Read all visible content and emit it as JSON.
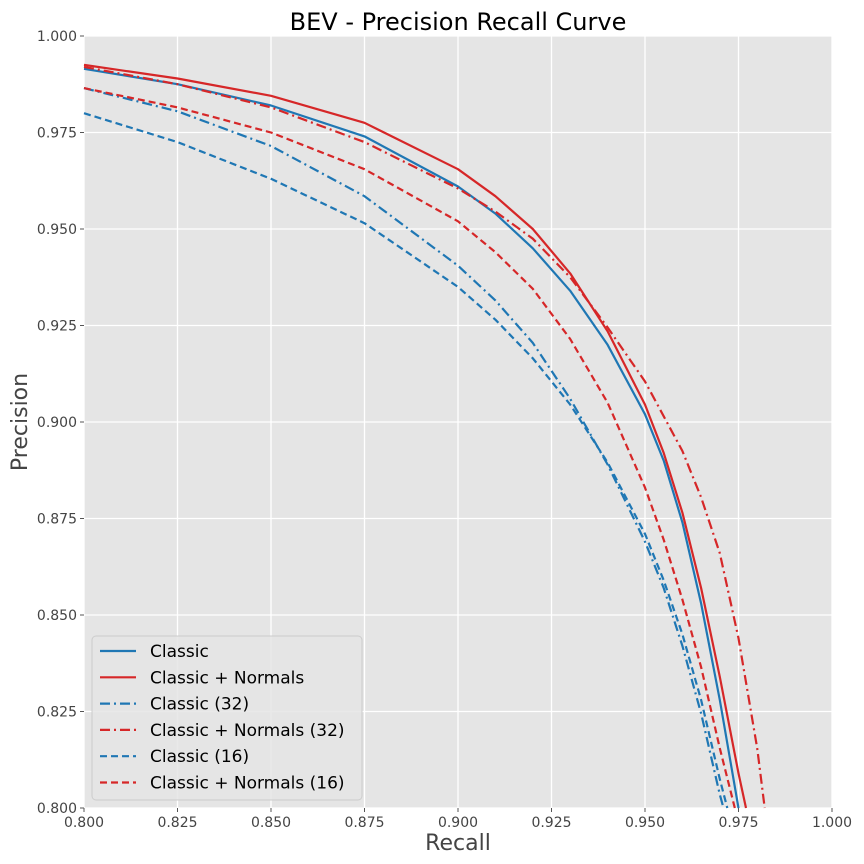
{
  "chart_data": {
    "type": "line",
    "title": "BEV - Precision Recall Curve",
    "xlabel": "Recall",
    "ylabel": "Precision",
    "xlim": [
      0.8,
      1.0
    ],
    "ylim": [
      0.8,
      1.0
    ],
    "x_ticks": [
      "0.800",
      "0.825",
      "0.850",
      "0.875",
      "0.900",
      "0.925",
      "0.950",
      "0.975",
      "1.000"
    ],
    "y_ticks": [
      "0.800",
      "0.825",
      "0.850",
      "0.875",
      "0.900",
      "0.925",
      "0.950",
      "0.975",
      "1.000"
    ],
    "grid": true,
    "legend_position": "lower-left",
    "series": [
      {
        "name": "Classic",
        "color": "#1f77b4",
        "linestyle": "solid",
        "points": [
          [
            0.8,
            0.9915
          ],
          [
            0.825,
            0.9875
          ],
          [
            0.85,
            0.982
          ],
          [
            0.875,
            0.974
          ],
          [
            0.9,
            0.961
          ],
          [
            0.91,
            0.954
          ],
          [
            0.92,
            0.945
          ],
          [
            0.93,
            0.934
          ],
          [
            0.94,
            0.92
          ],
          [
            0.95,
            0.902
          ],
          [
            0.955,
            0.89
          ],
          [
            0.96,
            0.874
          ],
          [
            0.965,
            0.853
          ],
          [
            0.97,
            0.828
          ],
          [
            0.975,
            0.8
          ]
        ]
      },
      {
        "name": "Classic + Normals",
        "color": "#d62728",
        "linestyle": "solid",
        "points": [
          [
            0.8,
            0.9925
          ],
          [
            0.825,
            0.989
          ],
          [
            0.85,
            0.9845
          ],
          [
            0.875,
            0.9775
          ],
          [
            0.9,
            0.9655
          ],
          [
            0.91,
            0.9585
          ],
          [
            0.92,
            0.95
          ],
          [
            0.93,
            0.9385
          ],
          [
            0.94,
            0.9235
          ],
          [
            0.95,
            0.9045
          ],
          [
            0.955,
            0.892
          ],
          [
            0.96,
            0.8765
          ],
          [
            0.965,
            0.857
          ],
          [
            0.97,
            0.834
          ],
          [
            0.975,
            0.809
          ],
          [
            0.977,
            0.8
          ]
        ]
      },
      {
        "name": "Classic (32)",
        "color": "#1f77b4",
        "linestyle": "dashdot",
        "points": [
          [
            0.8,
            0.9865
          ],
          [
            0.825,
            0.9805
          ],
          [
            0.85,
            0.9715
          ],
          [
            0.875,
            0.9585
          ],
          [
            0.9,
            0.9405
          ],
          [
            0.91,
            0.9315
          ],
          [
            0.92,
            0.9205
          ],
          [
            0.93,
            0.906
          ],
          [
            0.94,
            0.889
          ],
          [
            0.95,
            0.869
          ],
          [
            0.955,
            0.857
          ],
          [
            0.96,
            0.842
          ],
          [
            0.965,
            0.8245
          ],
          [
            0.97,
            0.8035
          ],
          [
            0.971,
            0.8
          ]
        ]
      },
      {
        "name": "Classic + Normals (32)",
        "color": "#d62728",
        "linestyle": "dashdot",
        "points": [
          [
            0.8,
            0.992
          ],
          [
            0.825,
            0.9875
          ],
          [
            0.85,
            0.9815
          ],
          [
            0.875,
            0.9725
          ],
          [
            0.9,
            0.9605
          ],
          [
            0.91,
            0.9545
          ],
          [
            0.92,
            0.9475
          ],
          [
            0.93,
            0.9375
          ],
          [
            0.94,
            0.9245
          ],
          [
            0.95,
            0.9105
          ],
          [
            0.96,
            0.8925
          ],
          [
            0.965,
            0.8805
          ],
          [
            0.97,
            0.866
          ],
          [
            0.975,
            0.844
          ],
          [
            0.98,
            0.8155
          ],
          [
            0.982,
            0.8
          ]
        ]
      },
      {
        "name": "Classic (16)",
        "color": "#1f77b4",
        "linestyle": "dashed",
        "points": [
          [
            0.8,
            0.98
          ],
          [
            0.825,
            0.9725
          ],
          [
            0.85,
            0.963
          ],
          [
            0.875,
            0.9515
          ],
          [
            0.9,
            0.935
          ],
          [
            0.91,
            0.9265
          ],
          [
            0.92,
            0.9165
          ],
          [
            0.93,
            0.9045
          ],
          [
            0.94,
            0.8895
          ],
          [
            0.95,
            0.871
          ],
          [
            0.955,
            0.859
          ],
          [
            0.96,
            0.845
          ],
          [
            0.965,
            0.828
          ],
          [
            0.97,
            0.8075
          ],
          [
            0.972,
            0.8
          ]
        ]
      },
      {
        "name": "Classic + Normals (16)",
        "color": "#d62728",
        "linestyle": "dashed",
        "points": [
          [
            0.8,
            0.9865
          ],
          [
            0.825,
            0.9815
          ],
          [
            0.85,
            0.975
          ],
          [
            0.875,
            0.9655
          ],
          [
            0.9,
            0.952
          ],
          [
            0.91,
            0.944
          ],
          [
            0.92,
            0.9345
          ],
          [
            0.93,
            0.9215
          ],
          [
            0.94,
            0.905
          ],
          [
            0.95,
            0.883
          ],
          [
            0.955,
            0.8695
          ],
          [
            0.96,
            0.854
          ],
          [
            0.965,
            0.8365
          ],
          [
            0.97,
            0.8155
          ],
          [
            0.974,
            0.8
          ]
        ]
      }
    ]
  }
}
